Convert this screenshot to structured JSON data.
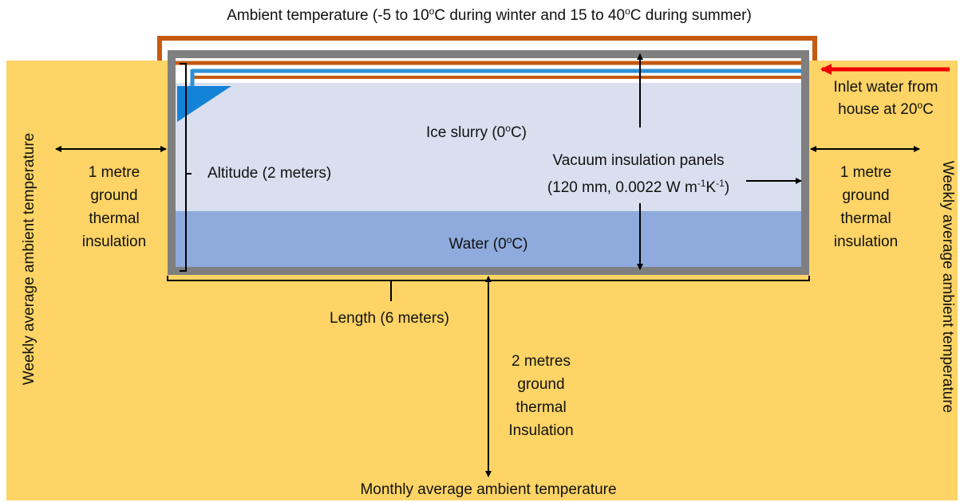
{
  "ambient": [
    "Ambient temperature (-5 to 10",
    "o",
    "C during winter and 15 to 40",
    "o",
    "C during summer)"
  ],
  "inlet": {
    "line1": "Inlet water from",
    "line2": [
      "house at 20",
      "o",
      "C"
    ]
  },
  "side_left": "Weekly average ambient temperature",
  "side_right": "Weekly average ambient temperature",
  "insulation_left": [
    "1 metre",
    "ground",
    "thermal",
    "insulation"
  ],
  "insulation_right": [
    "1 metre",
    "ground",
    "thermal",
    "insulation"
  ],
  "ice": [
    "Ice slurry (0",
    "o",
    "C)"
  ],
  "altitude": "Altitude (2 meters)",
  "vacuum": {
    "line1": "Vacuum insulation panels",
    "line2": [
      "(120 mm, 0.0022 W m",
      "-1",
      "K",
      "-1",
      ")"
    ]
  },
  "water": [
    "Water (0",
    "o",
    "C)"
  ],
  "length": "Length (6 meters)",
  "insulation_bottom": [
    "2 metres",
    "ground",
    "thermal",
    "Insulation"
  ],
  "bottom": "Monthly average ambient temperature"
}
